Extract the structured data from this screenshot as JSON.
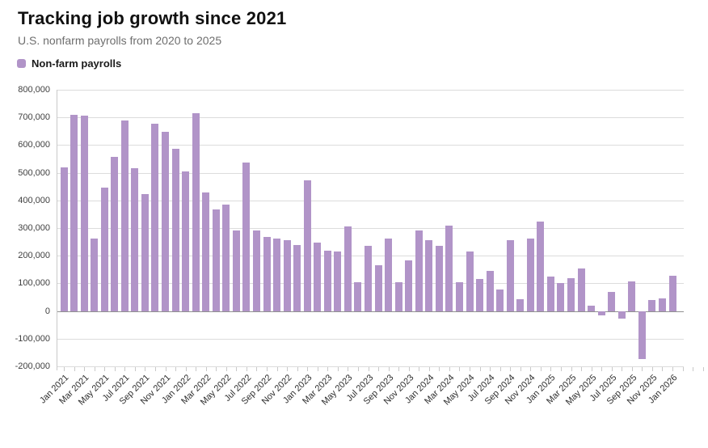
{
  "header": {
    "title": "Tracking job growth since 2021",
    "subtitle": "U.S. nonfarm payrolls from 2020 to 2025"
  },
  "legend": {
    "label": "Non-farm payrolls"
  },
  "colors": {
    "bar": "#b194c8",
    "grid": "#dcdcdc",
    "zero_line": "#909090",
    "axis": "#c9c9c9",
    "title": "#111111",
    "subtitle": "#6e6e6e"
  },
  "chart_data": {
    "type": "bar",
    "title": "Tracking job growth since 2021",
    "subtitle": "U.S. nonfarm payrolls from 2020 to 2025",
    "series_name": "Non-farm payrolls",
    "ylim": [
      -200000,
      800000
    ],
    "grid": true,
    "legend_position": "top-left",
    "x": [
      "Jan 2021",
      "Feb 2021",
      "Mar 2021",
      "Apr 2021",
      "May 2021",
      "Jun 2021",
      "Jul 2021",
      "Aug 2021",
      "Sep 2021",
      "Oct 2021",
      "Nov 2021",
      "Dec 2021",
      "Jan 2022",
      "Feb 2022",
      "Mar 2022",
      "Apr 2022",
      "May 2022",
      "Jun 2022",
      "Jul 2022",
      "Aug 2022",
      "Sep 2022",
      "Oct 2022",
      "Nov 2022",
      "Dec 2022",
      "Jan 2023",
      "Feb 2023",
      "Mar 2023",
      "Apr 2023",
      "May 2023",
      "Jun 2023",
      "Jul 2023",
      "Aug 2023",
      "Sep 2023",
      "Oct 2023",
      "Nov 2023",
      "Dec 2023",
      "Jan 2024",
      "Feb 2024",
      "Mar 2024",
      "Apr 2024",
      "May 2024",
      "Jun 2024",
      "Jul 2024",
      "Aug 2024",
      "Sep 2024",
      "Oct 2024",
      "Nov 2024",
      "Dec 2024",
      "Jan 2025",
      "Feb 2025",
      "Mar 2025",
      "Apr 2025",
      "May 2025",
      "Jun 2025",
      "Jul 2025",
      "Aug 2025",
      "Sep 2025",
      "Oct 2025",
      "Nov 2025",
      "Dec 2025",
      "Jan 2026"
    ],
    "values": [
      520000,
      710000,
      705000,
      263000,
      447000,
      557000,
      690000,
      517000,
      424000,
      678000,
      648000,
      588000,
      505000,
      714000,
      428000,
      368000,
      384000,
      292000,
      537000,
      290000,
      269000,
      263000,
      257000,
      238000,
      472000,
      248000,
      217000,
      216000,
      306000,
      104000,
      235000,
      165000,
      261000,
      105000,
      182000,
      290000,
      257000,
      236000,
      310000,
      105000,
      216000,
      117000,
      144000,
      78000,
      255000,
      42000,
      261000,
      324000,
      124000,
      100000,
      119000,
      155000,
      18000,
      -15000,
      70000,
      -27000,
      107000,
      -175000,
      39000,
      46000,
      128000
    ],
    "y_ticks": [
      {
        "value": 800000,
        "label": "800,000"
      },
      {
        "value": 700000,
        "label": "700,000"
      },
      {
        "value": 600000,
        "label": "600,000"
      },
      {
        "value": 500000,
        "label": "500,000"
      },
      {
        "value": 400000,
        "label": "400,000"
      },
      {
        "value": 300000,
        "label": "300,000"
      },
      {
        "value": 200000,
        "label": "200,000"
      },
      {
        "value": 100000,
        "label": "100,000"
      },
      {
        "value": 0,
        "label": "0"
      },
      {
        "value": -100000,
        "label": "-100,000"
      },
      {
        "value": -200000,
        "label": "-200,000"
      }
    ],
    "x_tick_labels": [
      "Jan 2021",
      "Mar 2021",
      "May 2021",
      "Jul 2021",
      "Sep 2021",
      "Nov 2021",
      "Jan 2022",
      "Mar 2022",
      "May 2022",
      "Jul 2022",
      "Sep 2022",
      "Nov 2022",
      "Jan 2023",
      "Mar 2023",
      "May 2023",
      "Jul 2023",
      "Sep 2023",
      "Nov 2023",
      "Jan 2024",
      "Mar 2024",
      "May 2024",
      "Jul 2024",
      "Sep 2024",
      "Nov 2024",
      "Jan 2025",
      "Mar 2025",
      "May 2025",
      "Jul 2025",
      "Sep 2025",
      "Nov 2025",
      "Jan 2026"
    ]
  }
}
